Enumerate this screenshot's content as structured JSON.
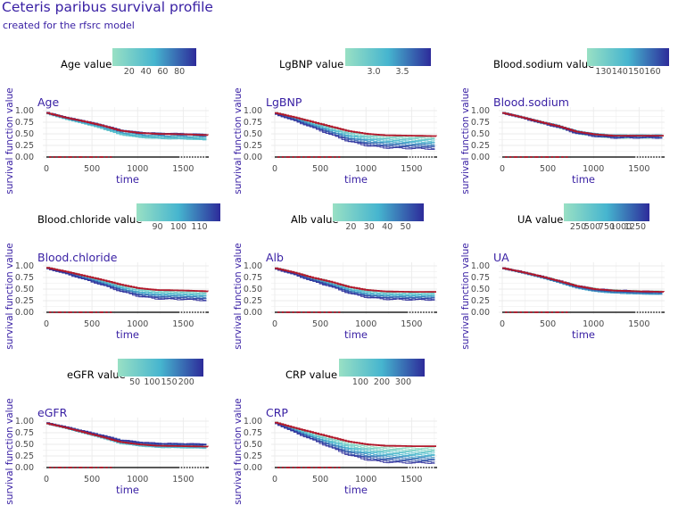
{
  "title": "Ceteris paribus survival profile",
  "subtitle": "created for the rfsrc model",
  "colors": {
    "text": "#371ea3",
    "baseline": "#b2182b",
    "grad_low": "#99e0c4",
    "grad_mid": "#46b5cf",
    "grad_high": "#2d2b9a",
    "grid": "#ebebeb",
    "axis_text": "#4b4b4b"
  },
  "chart_data": [
    {
      "type": "line",
      "panel": "Age",
      "legend_title": "Age value",
      "legend_ticks": [
        "20",
        "40",
        "60",
        "80"
      ],
      "xlabel": "time",
      "ylabel": "survival function value",
      "xlim": [
        0,
        1780
      ],
      "ylim": [
        0,
        1
      ],
      "x_ticks": [
        "0",
        "500",
        "1000",
        "1500"
      ],
      "y_ticks": [
        "0.00",
        "0.25",
        "0.50",
        "0.75",
        "1.00"
      ],
      "baseline": [
        [
          0,
          0.95
        ],
        [
          200,
          0.85
        ],
        [
          400,
          0.77
        ],
        [
          600,
          0.68
        ],
        [
          800,
          0.57
        ],
        [
          1000,
          0.52
        ],
        [
          1200,
          0.5
        ],
        [
          1500,
          0.49
        ],
        [
          1780,
          0.47
        ]
      ],
      "end_min": 0.37,
      "end_max": 0.48,
      "spread": "both"
    },
    {
      "type": "line",
      "panel": "LgBNP",
      "legend_title": "LgBNP value",
      "legend_ticks": [
        "3.0",
        "3.5"
      ],
      "xlabel": "time",
      "ylabel": "survival function value",
      "xlim": [
        0,
        1780
      ],
      "ylim": [
        0,
        1
      ],
      "x_ticks": [
        "0",
        "500",
        "1000",
        "1500"
      ],
      "y_ticks": [
        "0.00",
        "0.25",
        "0.50",
        "0.75",
        "1.00"
      ],
      "baseline": [
        [
          0,
          0.95
        ],
        [
          200,
          0.86
        ],
        [
          400,
          0.76
        ],
        [
          600,
          0.66
        ],
        [
          800,
          0.56
        ],
        [
          1000,
          0.5
        ],
        [
          1200,
          0.47
        ],
        [
          1500,
          0.46
        ],
        [
          1780,
          0.45
        ]
      ],
      "end_min": 0.17,
      "end_max": 0.44,
      "spread": "down"
    },
    {
      "type": "line",
      "panel": "Blood.sodium",
      "legend_title": "Blood.sodium value",
      "legend_ticks": [
        "130",
        "140",
        "150",
        "160"
      ],
      "xlabel": "time",
      "ylabel": "survival function value",
      "xlim": [
        0,
        1780
      ],
      "ylim": [
        0,
        1
      ],
      "x_ticks": [
        "0",
        "500",
        "1000",
        "1500"
      ],
      "y_ticks": [
        "0.00",
        "0.25",
        "0.50",
        "0.75",
        "1.00"
      ],
      "baseline": [
        [
          0,
          0.95
        ],
        [
          200,
          0.86
        ],
        [
          400,
          0.76
        ],
        [
          600,
          0.67
        ],
        [
          800,
          0.55
        ],
        [
          1000,
          0.49
        ],
        [
          1200,
          0.46
        ],
        [
          1500,
          0.46
        ],
        [
          1780,
          0.46
        ]
      ],
      "end_min": 0.41,
      "end_max": 0.47,
      "spread": "both"
    },
    {
      "type": "line",
      "panel": "Blood.chloride",
      "legend_title": "Blood.chloride value",
      "legend_ticks": [
        "90",
        "100",
        "110"
      ],
      "xlabel": "time",
      "ylabel": "survival function value",
      "xlim": [
        0,
        1780
      ],
      "ylim": [
        0,
        1
      ],
      "x_ticks": [
        "0",
        "500",
        "1000",
        "1500"
      ],
      "y_ticks": [
        "0.00",
        "0.25",
        "0.50",
        "0.75",
        "1.00"
      ],
      "baseline": [
        [
          0,
          0.96
        ],
        [
          200,
          0.88
        ],
        [
          400,
          0.79
        ],
        [
          600,
          0.7
        ],
        [
          800,
          0.6
        ],
        [
          1000,
          0.52
        ],
        [
          1200,
          0.48
        ],
        [
          1500,
          0.47
        ],
        [
          1780,
          0.45
        ]
      ],
      "end_min": 0.25,
      "end_max": 0.44,
      "spread": "down"
    },
    {
      "type": "line",
      "panel": "Alb",
      "legend_title": "Alb value",
      "legend_ticks": [
        "20",
        "30",
        "40",
        "50"
      ],
      "xlabel": "time",
      "ylabel": "survival function value",
      "xlim": [
        0,
        1780
      ],
      "ylim": [
        0,
        1
      ],
      "x_ticks": [
        "0",
        "500",
        "1000",
        "1500"
      ],
      "y_ticks": [
        "0.00",
        "0.25",
        "0.50",
        "0.75",
        "1.00"
      ],
      "baseline": [
        [
          0,
          0.95
        ],
        [
          200,
          0.86
        ],
        [
          400,
          0.75
        ],
        [
          600,
          0.66
        ],
        [
          800,
          0.55
        ],
        [
          1000,
          0.48
        ],
        [
          1200,
          0.45
        ],
        [
          1500,
          0.44
        ],
        [
          1780,
          0.44
        ]
      ],
      "end_min": 0.27,
      "end_max": 0.44,
      "spread": "down"
    },
    {
      "type": "line",
      "panel": "UA",
      "legend_title": "UA value",
      "legend_ticks": [
        "250",
        "500",
        "750",
        "1000",
        "1250"
      ],
      "xlabel": "time",
      "ylabel": "survival function value",
      "xlim": [
        0,
        1780
      ],
      "ylim": [
        0,
        1
      ],
      "x_ticks": [
        "0",
        "500",
        "1000",
        "1500"
      ],
      "y_ticks": [
        "0.00",
        "0.25",
        "0.50",
        "0.75",
        "1.00"
      ],
      "baseline": [
        [
          0,
          0.95
        ],
        [
          200,
          0.87
        ],
        [
          400,
          0.78
        ],
        [
          600,
          0.68
        ],
        [
          800,
          0.57
        ],
        [
          1000,
          0.5
        ],
        [
          1200,
          0.47
        ],
        [
          1500,
          0.45
        ],
        [
          1780,
          0.44
        ]
      ],
      "end_min": 0.39,
      "end_max": 0.45,
      "spread": "both"
    },
    {
      "type": "line",
      "panel": "eGFR",
      "legend_title": "eGFR value",
      "legend_ticks": [
        "50",
        "100",
        "150",
        "200"
      ],
      "xlabel": "time",
      "ylabel": "survival function value",
      "xlim": [
        0,
        1780
      ],
      "ylim": [
        0,
        1
      ],
      "x_ticks": [
        "0",
        "500",
        "1000",
        "1500"
      ],
      "y_ticks": [
        "0.00",
        "0.25",
        "0.50",
        "0.75",
        "1.00"
      ],
      "baseline": [
        [
          0,
          0.95
        ],
        [
          200,
          0.86
        ],
        [
          400,
          0.76
        ],
        [
          600,
          0.66
        ],
        [
          800,
          0.55
        ],
        [
          1000,
          0.5
        ],
        [
          1200,
          0.47
        ],
        [
          1500,
          0.46
        ],
        [
          1780,
          0.45
        ]
      ],
      "end_min": 0.42,
      "end_max": 0.5,
      "spread": "both"
    },
    {
      "type": "line",
      "panel": "CRP",
      "legend_title": "CRP value",
      "legend_ticks": [
        "100",
        "200",
        "300"
      ],
      "xlabel": "time",
      "ylabel": "survival function value",
      "xlim": [
        0,
        1780
      ],
      "ylim": [
        0,
        1
      ],
      "x_ticks": [
        "0",
        "500",
        "1000",
        "1500"
      ],
      "y_ticks": [
        "0.00",
        "0.25",
        "0.50",
        "0.75",
        "1.00"
      ],
      "baseline": [
        [
          0,
          0.97
        ],
        [
          200,
          0.86
        ],
        [
          400,
          0.76
        ],
        [
          600,
          0.66
        ],
        [
          800,
          0.56
        ],
        [
          1000,
          0.5
        ],
        [
          1200,
          0.47
        ],
        [
          1500,
          0.46
        ],
        [
          1780,
          0.46
        ]
      ],
      "end_min": 0.1,
      "end_max": 0.42,
      "spread": "down"
    }
  ]
}
